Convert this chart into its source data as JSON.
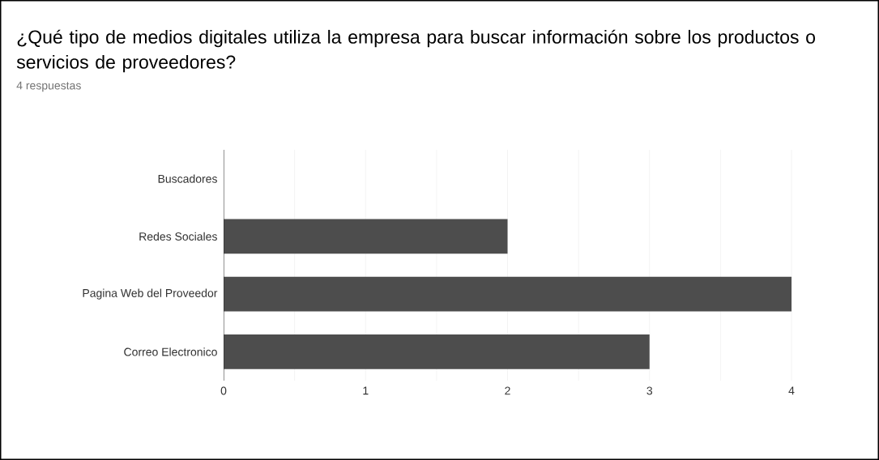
{
  "chart_data": {
    "type": "bar",
    "orientation": "horizontal",
    "title": "¿Qué tipo de medios digitales utiliza la empresa para buscar información sobre los productos o servicios de proveedores?",
    "subtitle": "4 respuestas",
    "categories": [
      "Buscadores",
      "Redes Sociales",
      "Pagina Web del Proveedor",
      "Correo Electronico"
    ],
    "values": [
      0,
      2,
      4,
      3
    ],
    "color": "#4d4d4d",
    "xlim": [
      0,
      4
    ],
    "xticks": [
      0,
      1,
      2,
      3,
      4
    ],
    "grid": "x"
  }
}
